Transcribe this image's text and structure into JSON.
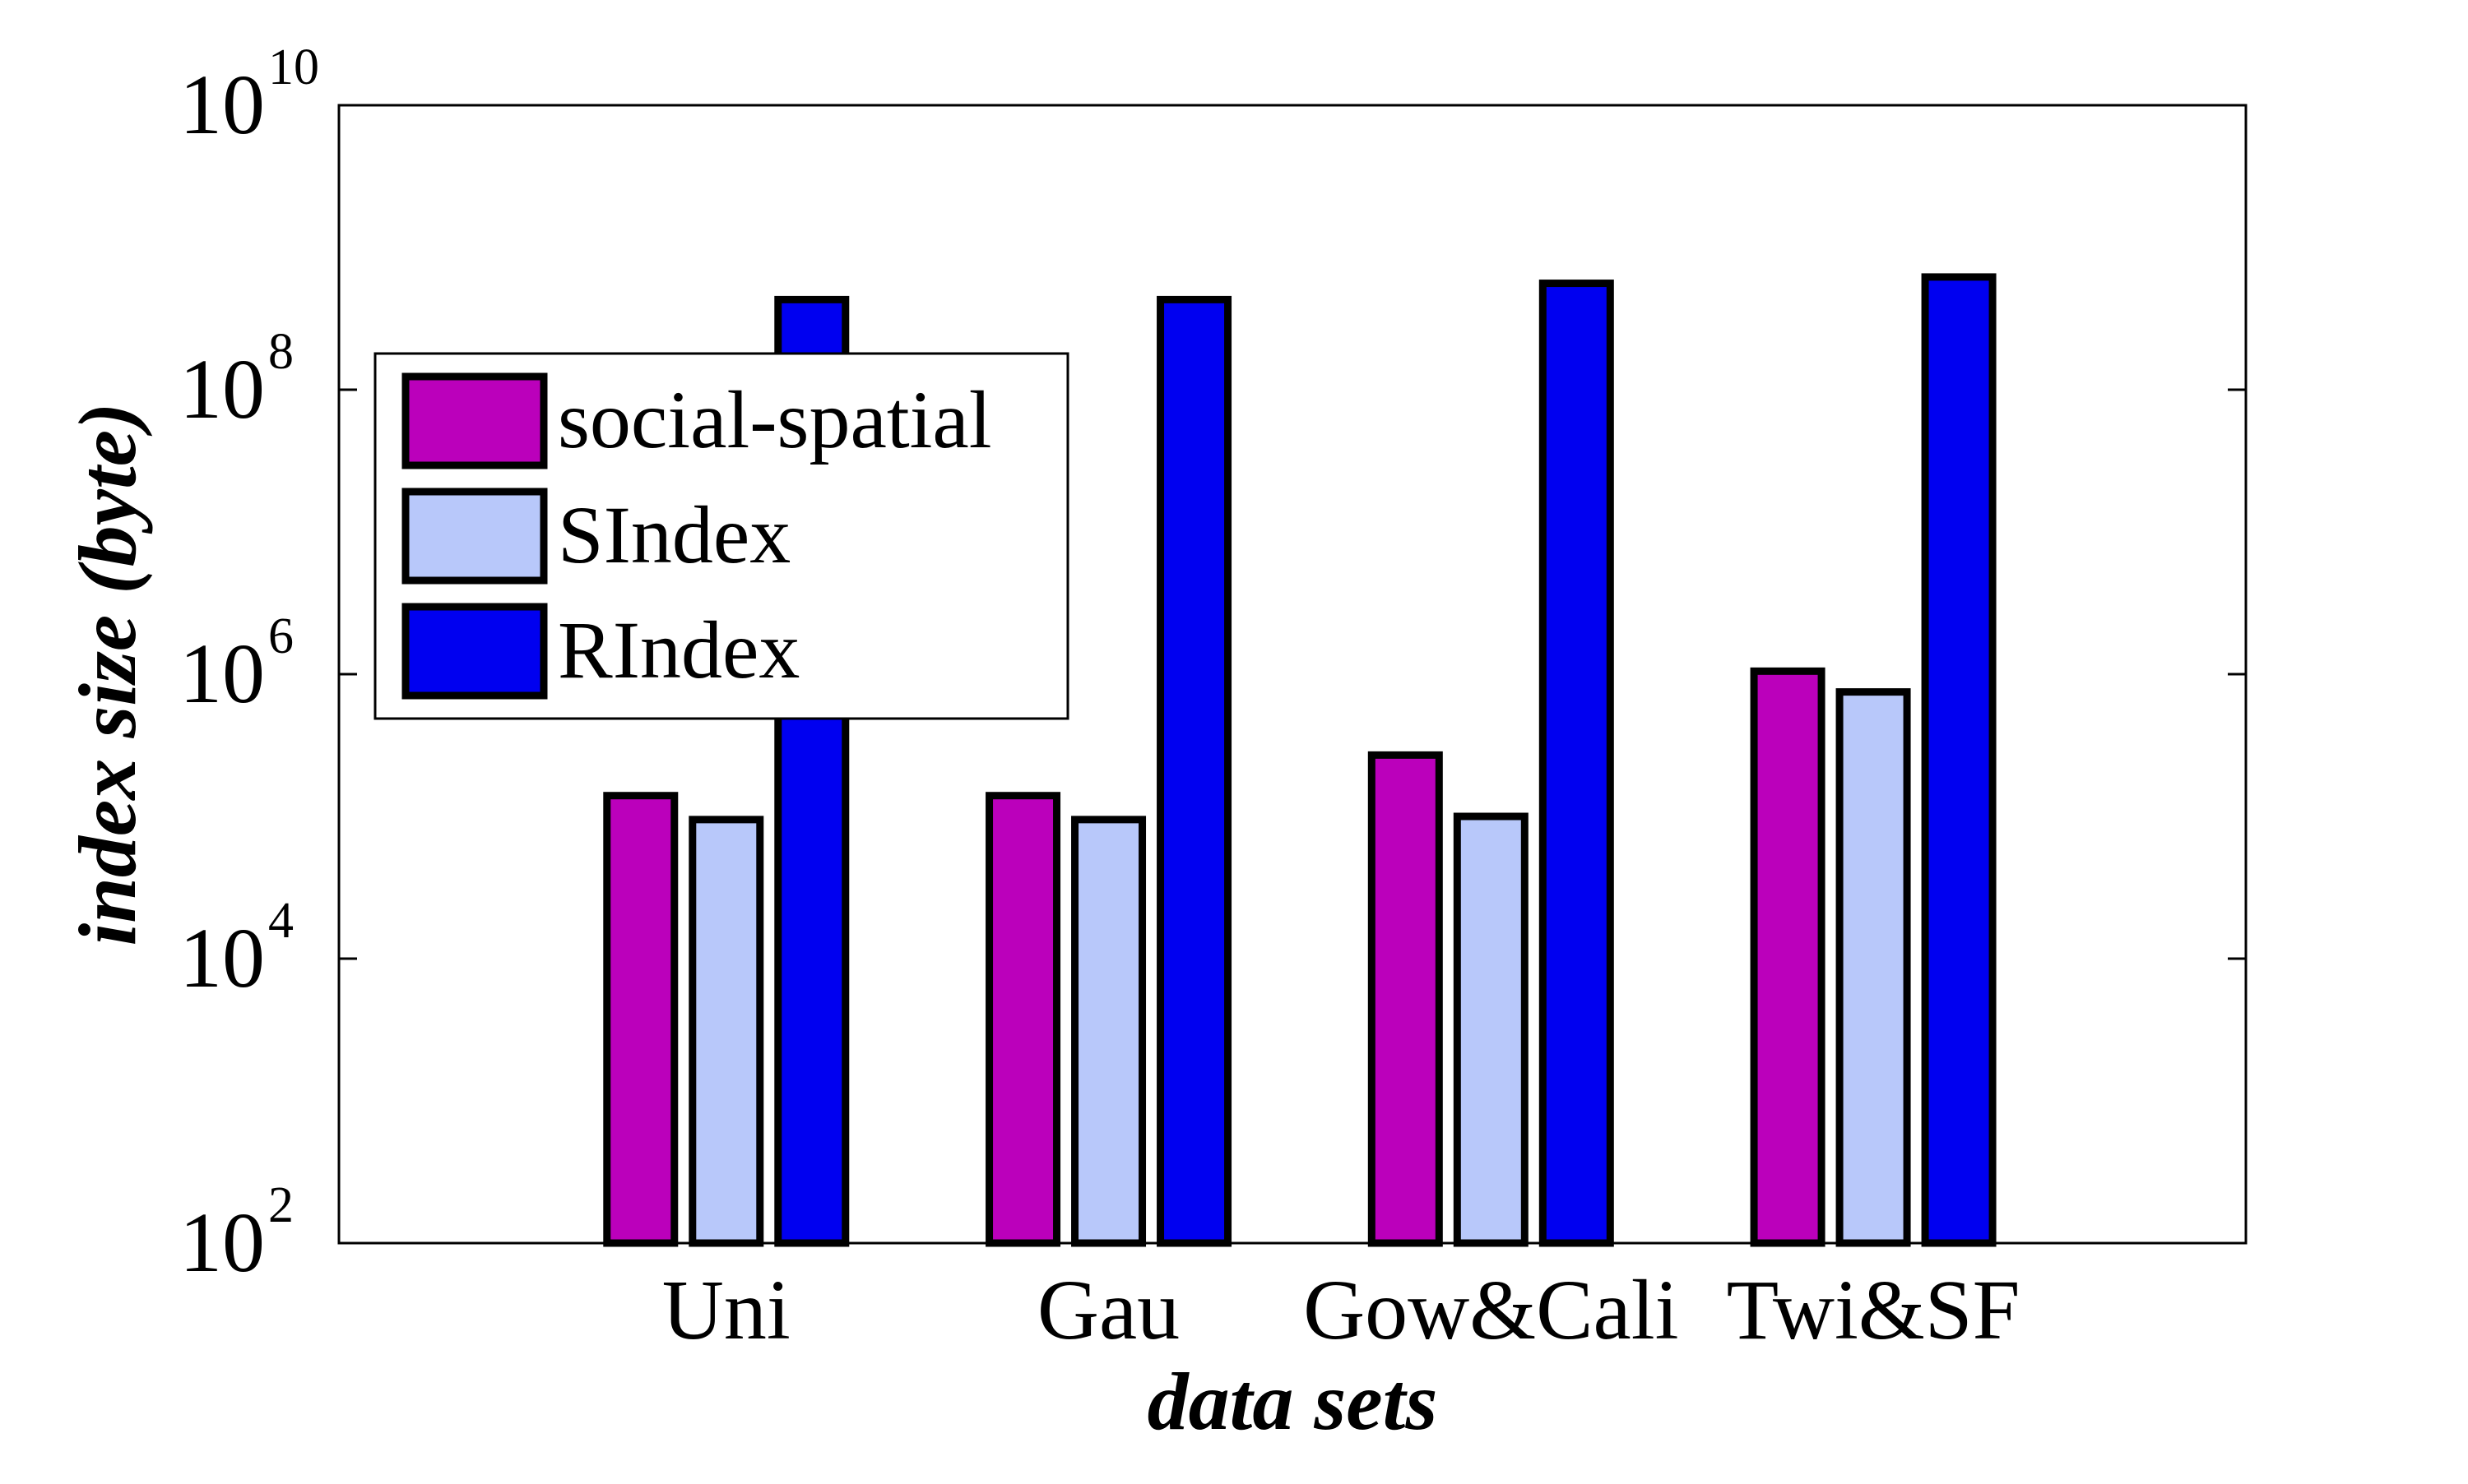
{
  "colors": {
    "social-spatial": "#BB00BB",
    "SIndex": "#B8C8FA",
    "RIndex": "#0000F0",
    "frame": "#000000",
    "background": "#FFFFFF"
  },
  "chart_data": {
    "type": "bar",
    "title": "",
    "xlabel": "data sets",
    "ylabel": "index size (byte)",
    "yscale": "log",
    "ylim": [
      100,
      10000000000
    ],
    "y_ticks": [
      {
        "value": 100,
        "base": "10",
        "exp": "2"
      },
      {
        "value": 10000,
        "base": "10",
        "exp": "4"
      },
      {
        "value": 1000000,
        "base": "10",
        "exp": "6"
      },
      {
        "value": 100000000,
        "base": "10",
        "exp": "8"
      },
      {
        "value": 10000000000,
        "base": "10",
        "exp": "10"
      }
    ],
    "grid": false,
    "legend_position": "top-left",
    "categories": [
      "Uni",
      "Gau",
      "Gow&Cali",
      "Twi&SF"
    ],
    "series": [
      {
        "name": "social-spatial",
        "color_key": "social-spatial",
        "values": [
          140000,
          140000,
          270000,
          1050000
        ]
      },
      {
        "name": "SIndex",
        "color_key": "SIndex",
        "values": [
          95000,
          95000,
          100000,
          750000
        ]
      },
      {
        "name": "RIndex",
        "color_key": "RIndex",
        "values": [
          430000000,
          430000000,
          560000000,
          620000000
        ]
      }
    ]
  }
}
